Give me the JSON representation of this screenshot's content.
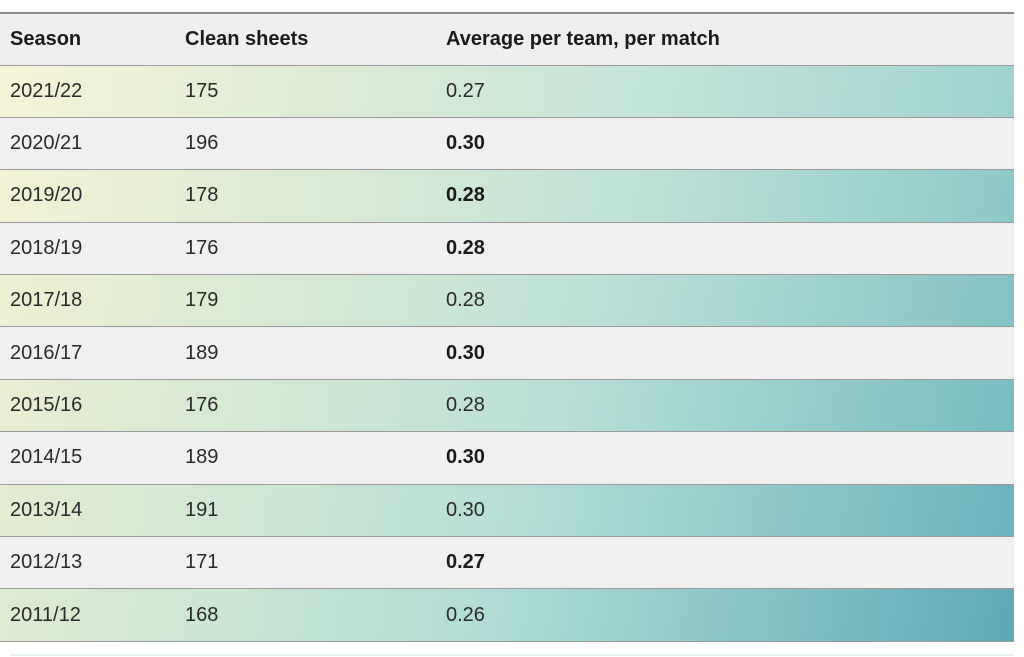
{
  "table": {
    "headers": {
      "season": "Season",
      "clean_sheets": "Clean sheets",
      "average": "Average per team, per match"
    },
    "rows": [
      {
        "season": "2021/22",
        "clean_sheets": "175",
        "average": "0.27",
        "bold": false
      },
      {
        "season": "2020/21",
        "clean_sheets": "196",
        "average": "0.30",
        "bold": true
      },
      {
        "season": "2019/20",
        "clean_sheets": "178",
        "average": "0.28",
        "bold": true
      },
      {
        "season": "2018/19",
        "clean_sheets": "176",
        "average": "0.28",
        "bold": true
      },
      {
        "season": "2017/18",
        "clean_sheets": "179",
        "average": "0.28",
        "bold": false
      },
      {
        "season": "2016/17",
        "clean_sheets": "189",
        "average": "0.30",
        "bold": true
      },
      {
        "season": "2015/16",
        "clean_sheets": "176",
        "average": "0.28",
        "bold": false
      },
      {
        "season": "2014/15",
        "clean_sheets": "189",
        "average": "0.30",
        "bold": true
      },
      {
        "season": "2013/14",
        "clean_sheets": "191",
        "average": "0.30",
        "bold": false
      },
      {
        "season": "2012/13",
        "clean_sheets": "171",
        "average": "0.27",
        "bold": true
      },
      {
        "season": "2011/12",
        "clean_sheets": "168",
        "average": "0.26",
        "bold": false
      }
    ]
  },
  "colors": {
    "header_bg": "#efefef",
    "row_alt_bg": "#f0f0f0",
    "gradient_start": "#f4f4d8",
    "gradient_end": "#5ea9b7"
  }
}
